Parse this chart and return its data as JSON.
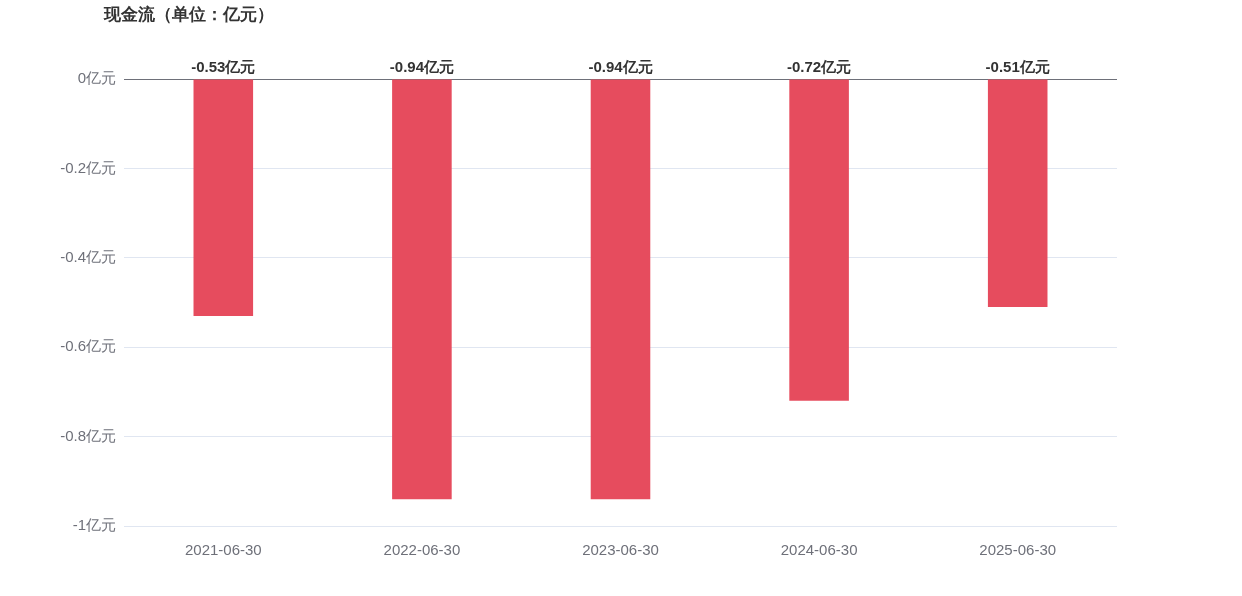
{
  "chart_data": {
    "type": "bar",
    "title": "现金流（单位：亿元）",
    "categories": [
      "2021-06-30",
      "2022-06-30",
      "2023-06-30",
      "2024-06-30",
      "2025-06-30"
    ],
    "values": [
      -0.53,
      -0.94,
      -0.94,
      -0.72,
      -0.51
    ],
    "value_labels": [
      "-0.53亿元",
      "-0.94亿元",
      "-0.94亿元",
      "-0.72亿元",
      "-0.51亿元"
    ],
    "color": "#e64c5e",
    "ylim": [
      -1,
      0
    ],
    "yticks": [
      {
        "value": -1,
        "label": "-1亿元"
      },
      {
        "value": -0.8,
        "label": "-0.8亿元"
      },
      {
        "value": -0.6,
        "label": "-0.6亿元"
      },
      {
        "value": -0.4,
        "label": "-0.4亿元"
      },
      {
        "value": -0.2,
        "label": "-0.2亿元"
      },
      {
        "value": 0,
        "label": "0亿元"
      }
    ],
    "grid": "y"
  }
}
